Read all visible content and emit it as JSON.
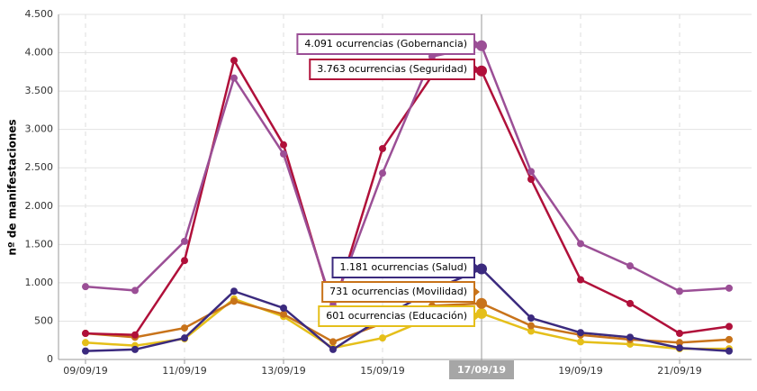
{
  "chart_data": {
    "type": "line",
    "y_label": "nº de manifestaciones",
    "categories": [
      "09/09/19",
      null,
      "11/09/19",
      null,
      "13/09/19",
      null,
      "15/09/19",
      null,
      "17/09/19",
      null,
      "19/09/19",
      null,
      "21/09/19",
      null
    ],
    "series": [
      {
        "color": "#9b4f96",
        "values": [
          950,
          900,
          1540,
          3670,
          2680,
          700,
          2430,
          3950,
          4091,
          2450,
          1510,
          1220,
          890,
          930
        ],
        "value_labels": [
          null,
          null,
          null,
          null,
          null,
          null,
          null,
          null,
          "4.091 ocurrencias (Gobernancia)",
          null,
          null,
          null,
          null,
          null
        ]
      },
      {
        "color": "#b0103a",
        "values": [
          340,
          320,
          1290,
          3900,
          2800,
          650,
          2750,
          3700,
          3763,
          2350,
          1040,
          730,
          340,
          430
        ],
        "value_labels": [
          null,
          null,
          null,
          null,
          null,
          null,
          null,
          null,
          "3.763 ocurrencias (Seguridad)",
          null,
          null,
          null,
          null,
          null
        ]
      },
      {
        "color": "#3b2a7e",
        "values": [
          110,
          130,
          280,
          890,
          670,
          130,
          550,
          900,
          1181,
          540,
          350,
          290,
          150,
          110
        ],
        "value_labels": [
          null,
          null,
          null,
          null,
          null,
          null,
          null,
          null,
          "1.181 ocurrencias (Salud)",
          null,
          null,
          null,
          null,
          null
        ]
      },
      {
        "color": "#c8731a",
        "values": [
          340,
          290,
          410,
          760,
          590,
          230,
          470,
          700,
          731,
          440,
          320,
          260,
          220,
          260
        ],
        "value_labels": [
          null,
          null,
          null,
          null,
          null,
          null,
          null,
          null,
          "731 ocurrencias (Movilidad)",
          null,
          null,
          null,
          null,
          null
        ]
      },
      {
        "color": "#e5bf1a",
        "values": [
          220,
          180,
          270,
          790,
          560,
          150,
          280,
          550,
          601,
          370,
          230,
          200,
          140,
          140
        ],
        "value_labels": [
          null,
          null,
          null,
          null,
          null,
          null,
          null,
          null,
          "601 ocurrencias (Educación)",
          null,
          null,
          null,
          null,
          null
        ]
      }
    ],
    "ylim": [
      0,
      4500
    ],
    "yticks": [
      0,
      500,
      {
        "value": 1000,
        "label": "1.000"
      },
      {
        "value": 1500,
        "label": "1.500"
      },
      {
        "value": 2000,
        "label": "2.000"
      },
      {
        "value": 2500,
        "label": "2.500"
      },
      {
        "value": 3000,
        "label": "3.000"
      },
      {
        "value": 3500,
        "label": "3.500"
      },
      {
        "value": 4000,
        "label": "4.000"
      },
      {
        "value": 4500,
        "label": "4.500"
      }
    ],
    "grid": true
  }
}
